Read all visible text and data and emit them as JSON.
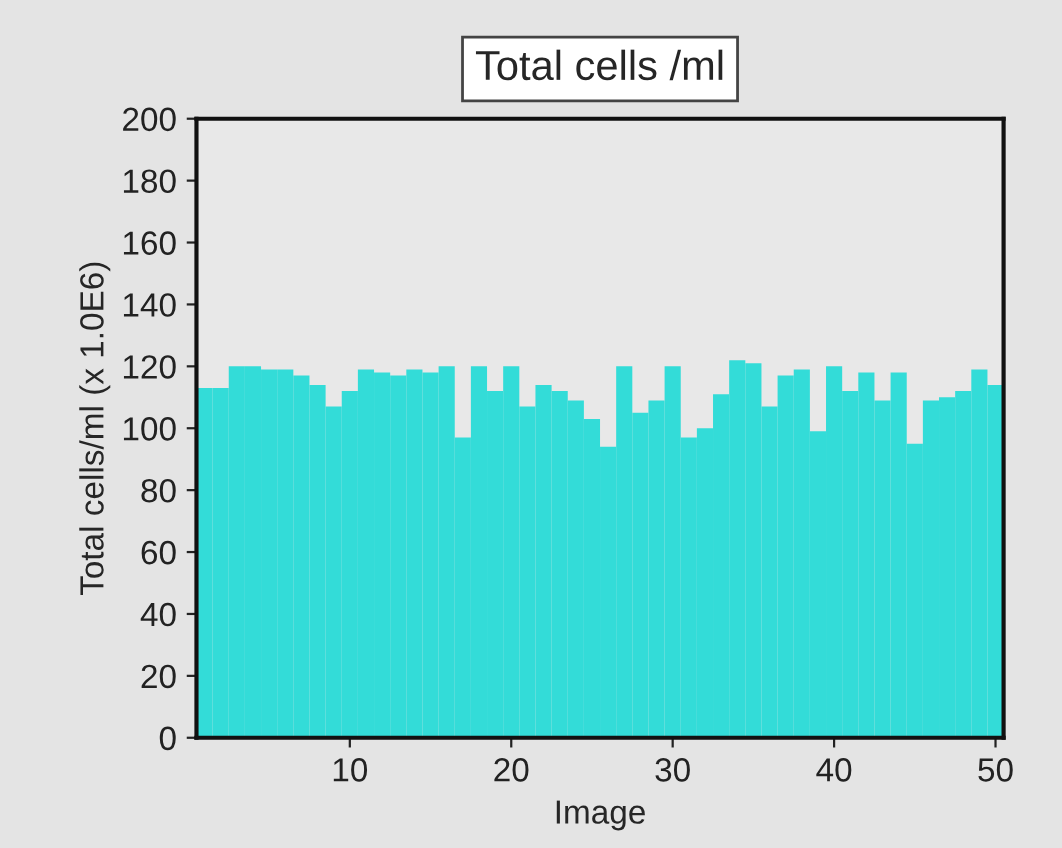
{
  "chart_data": {
    "type": "bar",
    "title": "Total cells /ml",
    "xlabel": "Image",
    "ylabel": "Total cells/ml (x 1.0E6)",
    "x": [
      1,
      2,
      3,
      4,
      5,
      6,
      7,
      8,
      9,
      10,
      11,
      12,
      13,
      14,
      15,
      16,
      17,
      18,
      19,
      20,
      21,
      22,
      23,
      24,
      25,
      26,
      27,
      28,
      29,
      30,
      31,
      32,
      33,
      34,
      35,
      36,
      37,
      38,
      39,
      40,
      41,
      42,
      43,
      44,
      45,
      46,
      47,
      48,
      49,
      50
    ],
    "values": [
      113,
      113,
      120,
      120,
      119,
      119,
      117,
      114,
      107,
      112,
      119,
      118,
      117,
      119,
      118,
      120,
      97,
      120,
      112,
      120,
      107,
      114,
      112,
      109,
      103,
      94,
      120,
      105,
      109,
      120,
      97,
      100,
      111,
      122,
      121,
      107,
      117,
      119,
      99,
      120,
      112,
      118,
      109,
      118,
      95,
      109,
      110,
      112,
      119,
      114
    ],
    "color": "#33dcd8",
    "xlim": [
      0.5,
      50.5
    ],
    "xticks": [
      10,
      20,
      30,
      40,
      50
    ],
    "ylim": [
      0,
      200
    ],
    "yticks": [
      0,
      20,
      40,
      60,
      80,
      100,
      120,
      140,
      160,
      180,
      200
    ],
    "grid": false,
    "legend": false
  }
}
